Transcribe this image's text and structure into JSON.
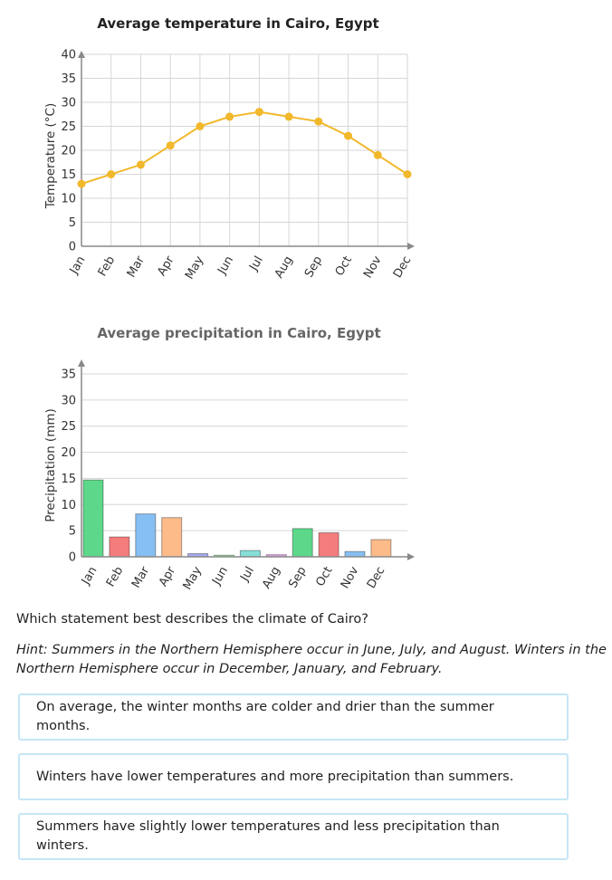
{
  "chart_data": [
    {
      "type": "line",
      "title": "Average temperature in Cairo, Egypt",
      "xlabel": "",
      "ylabel": "Temperature (°C)",
      "categories": [
        "Jan",
        "Feb",
        "Mar",
        "Apr",
        "May",
        "Jun",
        "Jul",
        "Aug",
        "Sep",
        "Oct",
        "Nov",
        "Dec"
      ],
      "values": [
        13,
        15,
        17,
        21,
        25,
        27,
        28,
        27,
        26,
        23,
        19,
        15
      ],
      "ylim": [
        0,
        40
      ],
      "yticks": [
        0,
        5,
        10,
        15,
        20,
        25,
        30,
        35,
        40
      ],
      "grid": true,
      "legend": "none",
      "colors": {
        "line": "#f2b82c",
        "title": "#222222",
        "ylabel": "#333333"
      }
    },
    {
      "type": "bar",
      "title": "Average precipitation in Cairo, Egypt",
      "xlabel": "",
      "ylabel": "Precipitation (mm)",
      "categories": [
        "Jan",
        "Feb",
        "Mar",
        "Apr",
        "May",
        "Jun",
        "Jul",
        "Aug",
        "Sep",
        "Oct",
        "Nov",
        "Dec"
      ],
      "values": [
        14.7,
        3.8,
        8.2,
        7.5,
        0.6,
        0.3,
        1.2,
        0.4,
        5.4,
        4.6,
        1.0,
        3.3
      ],
      "ylim": [
        0,
        35
      ],
      "yticks": [
        0,
        5,
        10,
        15,
        20,
        25,
        30,
        35
      ],
      "grid": true,
      "legend": "none",
      "colors": {
        "bars": [
          "#5dd88a",
          "#f47c7c",
          "#86bff3",
          "#fdbb8a",
          "#a6a9f0",
          "#9ee89f",
          "#85dfd8",
          "#e5a4e8",
          "#5dd88a",
          "#f47c7c",
          "#86bff3",
          "#fdbb8a"
        ],
        "title": "#666666",
        "ylabel": "#777777"
      }
    }
  ],
  "question": "Which statement best describes the climate of Cairo?",
  "hint_lines": [
    "Hint: Summers in the Northern Hemisphere occur in June, July, and August. Winters in the",
    "Northern Hemisphere occur in December, January, and February."
  ],
  "choices": [
    "On average, the winter months are colder and drier than the summer months.",
    "Winters have lower temperatures and more precipitation than summers.",
    "Summers have slightly lower temperatures and less precipitation than winters."
  ]
}
